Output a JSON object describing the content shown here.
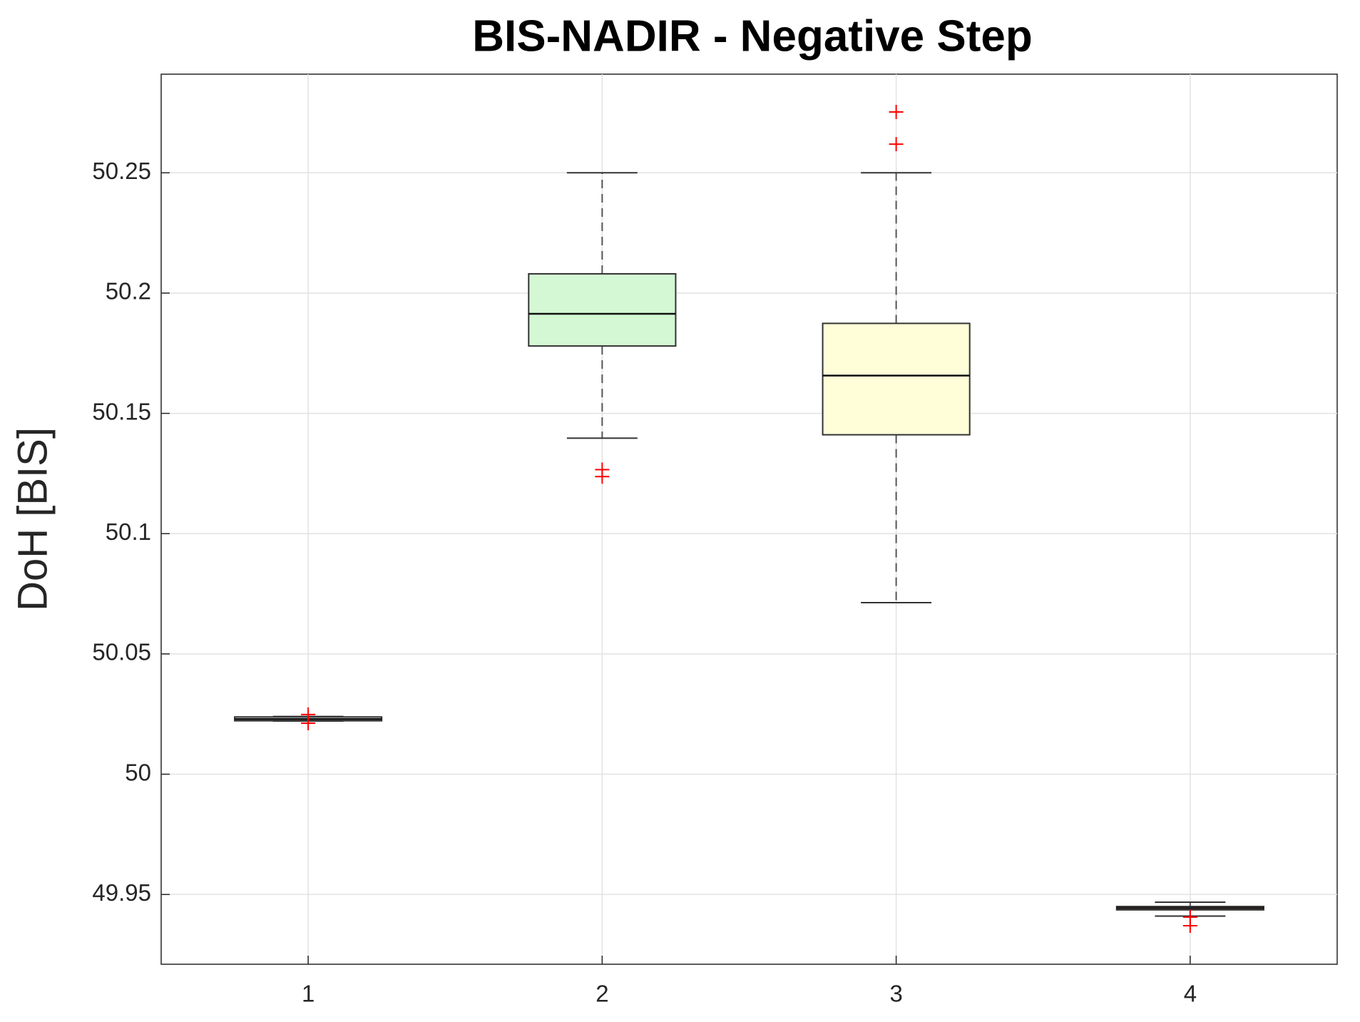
{
  "chart_data": {
    "type": "box",
    "title": "BIS-NADIR - Negative Step",
    "y_label": "DoH [BIS]",
    "categories": [
      "1",
      "2",
      "3",
      "4"
    ],
    "boxes": [
      {
        "color": "#cfcfcf",
        "whisker_low": 50.0221,
        "q1": 50.0222,
        "median": 50.0229,
        "q3": 50.0238,
        "whisker_high": 50.024,
        "outliers": [
          50.0248,
          50.0212
        ]
      },
      {
        "color": "#d4f8d4",
        "whisker_low": 50.1397,
        "q1": 50.178,
        "median": 50.1914,
        "q3": 50.208,
        "whisker_high": 50.25,
        "outliers": [
          50.1266,
          50.1237
        ]
      },
      {
        "color": "#fffed8",
        "whisker_low": 50.0713,
        "q1": 50.1411,
        "median": 50.1657,
        "q3": 50.1874,
        "whisker_high": 50.25,
        "outliers": [
          50.2753,
          50.2619
        ]
      },
      {
        "color": "#d9a0a0",
        "whisker_low": 49.941,
        "q1": 49.9436,
        "median": 49.9443,
        "q3": 49.945,
        "whisker_high": 49.9468,
        "outliers": [
          49.9406,
          49.937
        ]
      }
    ],
    "outlier_color": "#ff0000",
    "ylim": [
      49.921,
      50.291
    ],
    "yticks": [
      49.95,
      50,
      50.05,
      50.1,
      50.15,
      50.2,
      50.25
    ],
    "grid": true
  }
}
